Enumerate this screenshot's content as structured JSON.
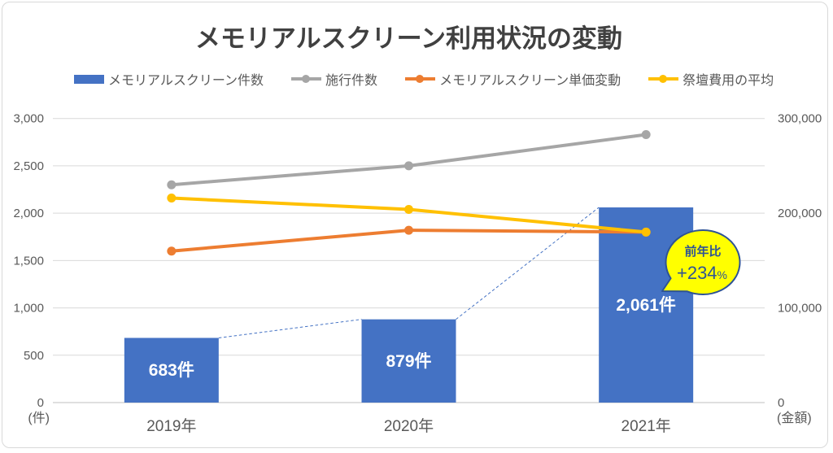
{
  "title": "メモリアルスクリーン利用状況の変動",
  "chart_data": {
    "type": "combo-bar-line",
    "categories": [
      "2019年",
      "2020年",
      "2021年"
    ],
    "bar_series": {
      "name": "メモリアルスクリーン件数",
      "axis": "left",
      "values": [
        683,
        879,
        2061
      ],
      "data_labels": [
        "683件",
        "879件",
        "2,061件"
      ],
      "color": "#4472C4"
    },
    "line_series": [
      {
        "name": "施行件数",
        "axis": "left",
        "values": [
          2300,
          2500,
          2830
        ],
        "color": "#A6A6A6"
      },
      {
        "name": "メモリアルスクリーン単価変動",
        "axis": "right",
        "values": [
          160000,
          182000,
          180000
        ],
        "color": "#ED7D31"
      },
      {
        "name": "祭壇費用の平均",
        "axis": "right",
        "values": [
          216000,
          204000,
          180000
        ],
        "color": "#FFC000"
      }
    ],
    "left_axis": {
      "min": 0,
      "max": 3000,
      "tick_step": 500,
      "tick_labels": [
        "0",
        "500",
        "1,000",
        "1,500",
        "2,000",
        "2,500",
        "3,000"
      ],
      "unit_label": "(件)"
    },
    "right_axis": {
      "min": 0,
      "max": 300000,
      "tick_labels": [
        "0",
        "100,000",
        "200,000",
        "300,000"
      ],
      "unit_label": "(金額)"
    },
    "grid_color": "#D9D9D9",
    "axis_line_color": "#BFBFBF",
    "axis_text_color": "#595959",
    "connector_line": {
      "style": "dashed",
      "color": "#4472C4"
    },
    "callout": {
      "line1": "前年比",
      "value": "+234",
      "suffix": "%",
      "fill": "#FFFF00",
      "border_color": "#2E5395",
      "text_color": "#2E5395"
    }
  }
}
